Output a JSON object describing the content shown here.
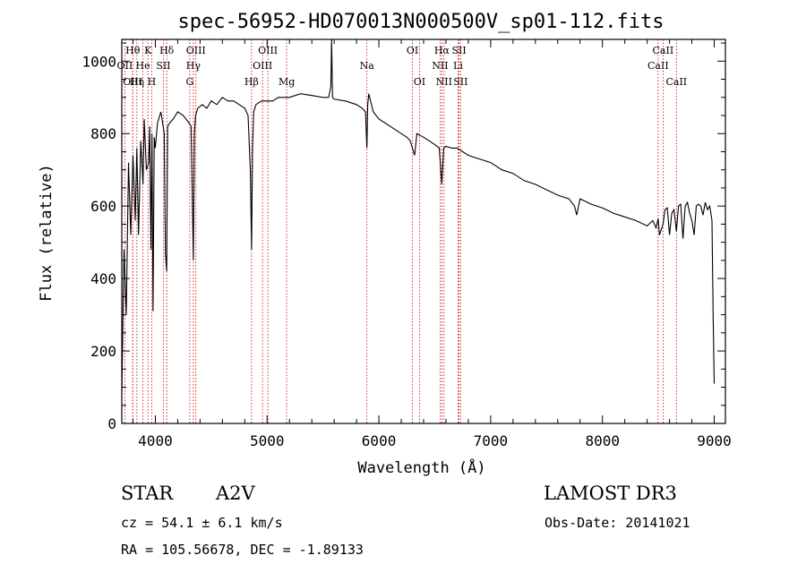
{
  "chart_data": {
    "type": "line",
    "title": "spec-56952-HD070013N000500V_sp01-112.fits",
    "xlabel": "Wavelength (Å)",
    "ylabel": "Flux (relative)",
    "xlim": [
      3700,
      9100
    ],
    "ylim": [
      0,
      1060
    ],
    "x_ticks": [
      4000,
      5000,
      6000,
      7000,
      8000,
      9000
    ],
    "y_ticks": [
      0,
      200,
      400,
      600,
      800,
      1000
    ],
    "grid": false,
    "series": [
      {
        "x": [
          3700,
          3720,
          3740,
          3760,
          3780,
          3800,
          3820,
          3835,
          3850,
          3870,
          3890,
          3900,
          3920,
          3940,
          3950,
          3960,
          3970,
          3980,
          3990,
          4000,
          4020,
          4050,
          4080,
          4090,
          4101,
          4110,
          4130,
          4160,
          4200,
          4250,
          4300,
          4320,
          4340,
          4350,
          4360,
          4380,
          4420,
          4460,
          4500,
          4550,
          4600,
          4650,
          4700,
          4750,
          4800,
          4830,
          4850,
          4861,
          4870,
          4880,
          4900,
          4950,
          5000,
          5050,
          5100,
          5150,
          5200,
          5300,
          5400,
          5500,
          5550,
          5570,
          5577,
          5585,
          5600,
          5700,
          5800,
          5850,
          5880,
          5893,
          5900,
          5910,
          5950,
          6000,
          6100,
          6200,
          6250,
          6280,
          6300,
          6320,
          6340,
          6400,
          6450,
          6500,
          6540,
          6563,
          6580,
          6600,
          6650,
          6700,
          6750,
          6800,
          6900,
          7000,
          7100,
          7200,
          7300,
          7400,
          7500,
          7600,
          7700,
          7750,
          7770,
          7800,
          7900,
          8000,
          8100,
          8200,
          8300,
          8400,
          8450,
          8480,
          8498,
          8510,
          8542,
          8560,
          8580,
          8600,
          8620,
          8640,
          8662,
          8680,
          8700,
          8720,
          8740,
          8760,
          8780,
          8800,
          8820,
          8840,
          8860,
          8880,
          8900,
          8920,
          8940,
          8960,
          8980,
          8990,
          9000
        ],
        "y": [
          80,
          480,
          300,
          720,
          520,
          740,
          560,
          760,
          520,
          780,
          660,
          840,
          700,
          720,
          820,
          480,
          800,
          310,
          790,
          760,
          830,
          860,
          800,
          470,
          420,
          820,
          830,
          840,
          860,
          850,
          830,
          820,
          450,
          800,
          850,
          870,
          880,
          870,
          890,
          880,
          900,
          890,
          890,
          880,
          870,
          850,
          700,
          480,
          760,
          860,
          880,
          890,
          890,
          890,
          900,
          900,
          900,
          910,
          905,
          900,
          900,
          930,
          1060,
          900,
          895,
          890,
          880,
          870,
          860,
          760,
          880,
          910,
          860,
          840,
          820,
          800,
          790,
          780,
          760,
          740,
          800,
          790,
          780,
          770,
          760,
          660,
          760,
          765,
          760,
          760,
          750,
          740,
          730,
          720,
          700,
          690,
          670,
          660,
          645,
          630,
          620,
          600,
          575,
          620,
          605,
          595,
          580,
          570,
          560,
          545,
          560,
          540,
          565,
          520,
          550,
          590,
          595,
          520,
          580,
          590,
          530,
          600,
          605,
          510,
          600,
          610,
          580,
          560,
          520,
          600,
          605,
          600,
          575,
          610,
          590,
          600,
          560,
          300,
          110
        ],
        "color": "#000000"
      }
    ],
    "spectral_lines": [
      {
        "label": "Hθ",
        "x": 3798,
        "row": 1
      },
      {
        "label": "K",
        "x": 3934,
        "row": 1
      },
      {
        "label": "Hδ",
        "x": 4102,
        "row": 1
      },
      {
        "label": "OIII",
        "x": 4363,
        "row": 1
      },
      {
        "label": "OIII",
        "x": 5007,
        "row": 1
      },
      {
        "label": "OI",
        "x": 6300,
        "row": 1
      },
      {
        "label": "Hα",
        "x": 6563,
        "row": 1
      },
      {
        "label": "SII",
        "x": 6717,
        "row": 1
      },
      {
        "label": "CaII",
        "x": 8542,
        "row": 1
      },
      {
        "label": "OII",
        "x": 3727,
        "row": 2
      },
      {
        "label": "He",
        "x": 3889,
        "row": 2
      },
      {
        "label": "SII",
        "x": 4072,
        "row": 2
      },
      {
        "label": "Hγ",
        "x": 4340,
        "row": 2
      },
      {
        "label": "OIII",
        "x": 4959,
        "row": 2
      },
      {
        "label": "NII",
        "x": 6548,
        "row": 2
      },
      {
        "label": "Li",
        "x": 6708,
        "row": 2
      },
      {
        "label": "CaII",
        "x": 8498,
        "row": 2
      },
      {
        "label": "OIII",
        "x": 3798,
        "row": 3
      },
      {
        "label": "Hη",
        "x": 3835,
        "row": 3
      },
      {
        "label": "H",
        "x": 3968,
        "row": 3
      },
      {
        "label": "G",
        "x": 4308,
        "row": 3
      },
      {
        "label": "Hβ",
        "x": 4861,
        "row": 3
      },
      {
        "label": "Mg",
        "x": 5175,
        "row": 3
      },
      {
        "label": "Na",
        "x": 5893,
        "row": 2
      },
      {
        "label": "OI",
        "x": 6363,
        "row": 3
      },
      {
        "label": "NII",
        "x": 6583,
        "row": 3
      },
      {
        "label": "SII",
        "x": 6731,
        "row": 3
      },
      {
        "label": "CaII",
        "x": 8662,
        "row": 3
      }
    ],
    "line_color": "#cc0000"
  },
  "info": {
    "object_type": "STAR",
    "subclass": "A2V",
    "survey": "LAMOST DR3",
    "redshift": "cz = 54.1 ± 6.1 km/s",
    "obs_date": "Obs-Date: 20141021",
    "coords": "RA = 105.56678, DEC =  -1.89133"
  }
}
